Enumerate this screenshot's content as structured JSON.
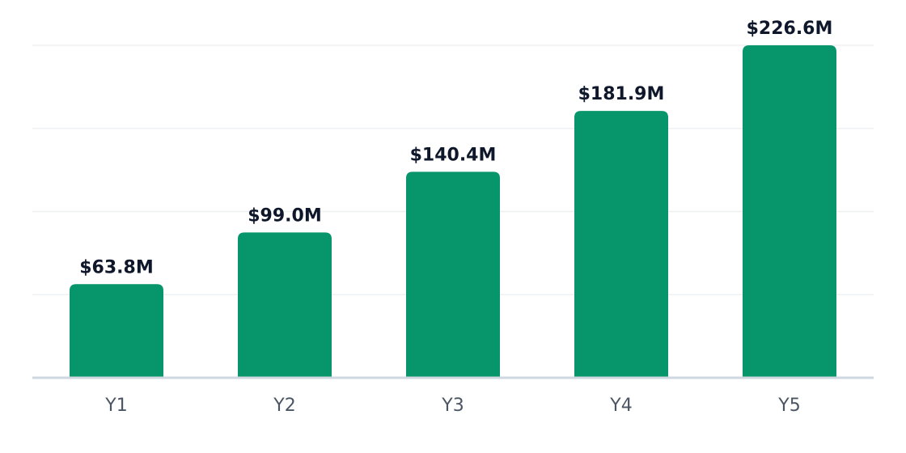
{
  "chart_data": {
    "type": "bar",
    "categories": [
      "Y1",
      "Y2",
      "Y3",
      "Y4",
      "Y5"
    ],
    "values": [
      63.8,
      99.0,
      140.4,
      181.9,
      226.6
    ],
    "value_labels": [
      "$63.8M",
      "$99.0M",
      "$140.4M",
      "$181.9M",
      "$226.6M"
    ],
    "title": "",
    "xlabel": "",
    "ylabel": "",
    "ylim": [
      0,
      226.6
    ],
    "grid": true,
    "legend": "none"
  },
  "colors": {
    "bar": "#07966b",
    "value_text": "#0f172a",
    "tick_text": "#4b5563",
    "gridline": "#eef1f4",
    "baseline": "#cfd8e1"
  }
}
